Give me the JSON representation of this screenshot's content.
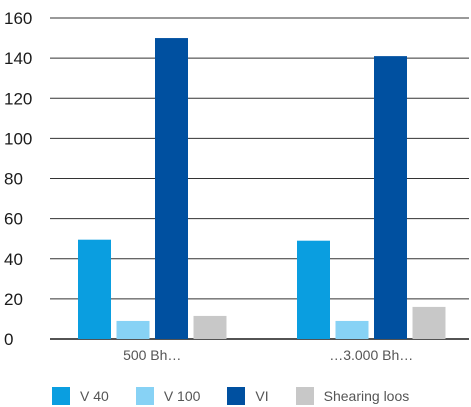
{
  "chart_data": {
    "type": "bar",
    "categories": [
      "500 Bh…",
      "…3.000 Bh…"
    ],
    "series": [
      {
        "name": "V 40",
        "values": [
          49.5,
          49
        ],
        "color": "#0a9ee0"
      },
      {
        "name": "V 100",
        "values": [
          9,
          9
        ],
        "color": "#87d2f5"
      },
      {
        "name": "VI",
        "values": [
          150,
          141
        ],
        "color": "#0050a0"
      },
      {
        "name": "Shearing loos",
        "values": [
          11.5,
          16
        ],
        "color": "#c8c8c8"
      }
    ],
    "ylim": [
      0,
      160
    ],
    "yticks": [
      0,
      20,
      40,
      60,
      80,
      100,
      120,
      140,
      160
    ],
    "grid": true,
    "legend_position": "bottom",
    "title": "",
    "xlabel": "",
    "ylabel": ""
  }
}
